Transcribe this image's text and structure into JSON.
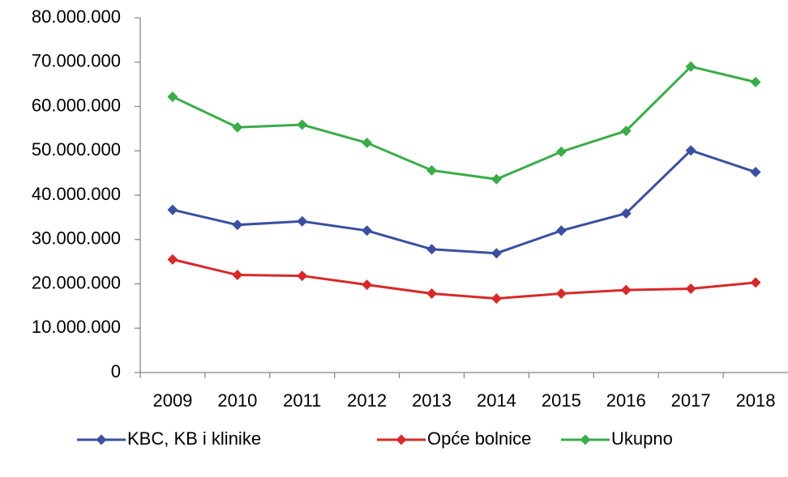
{
  "chart_data": {
    "type": "line",
    "categories": [
      "2009",
      "2010",
      "2011",
      "2012",
      "2013",
      "2014",
      "2015",
      "2016",
      "2017",
      "2018"
    ],
    "series": [
      {
        "name": "KBC, KB i klinike",
        "color": "#3a4fa0",
        "values": [
          36700000,
          33300000,
          34100000,
          32000000,
          27800000,
          26900000,
          32000000,
          35900000,
          50100000,
          45200000
        ]
      },
      {
        "name": "Opće bolnice",
        "color": "#d62a2a",
        "values": [
          25500000,
          22000000,
          21800000,
          19800000,
          17800000,
          16700000,
          17800000,
          18600000,
          18900000,
          20300000
        ]
      },
      {
        "name": "Ukupno",
        "color": "#3aac4a",
        "values": [
          62200000,
          55300000,
          55900000,
          51800000,
          45600000,
          43600000,
          49800000,
          54500000,
          69000000,
          65500000
        ]
      }
    ],
    "ylim": [
      0,
      80000000
    ],
    "yticks": [
      0,
      {
        "value": 10000000,
        "label": "10.000.000"
      },
      {
        "value": 20000000,
        "label": "20.000.000"
      },
      {
        "value": 30000000,
        "label": "30.000.000"
      },
      {
        "value": 40000000,
        "label": "40.000.000"
      },
      {
        "value": 50000000,
        "label": "50.000.000"
      },
      {
        "value": 60000000,
        "label": "60.000.000"
      },
      {
        "value": 70000000,
        "label": "70.000.000"
      },
      {
        "value": 80000000,
        "label": "80.000.000"
      }
    ],
    "grid": false,
    "legend": "bottom"
  }
}
